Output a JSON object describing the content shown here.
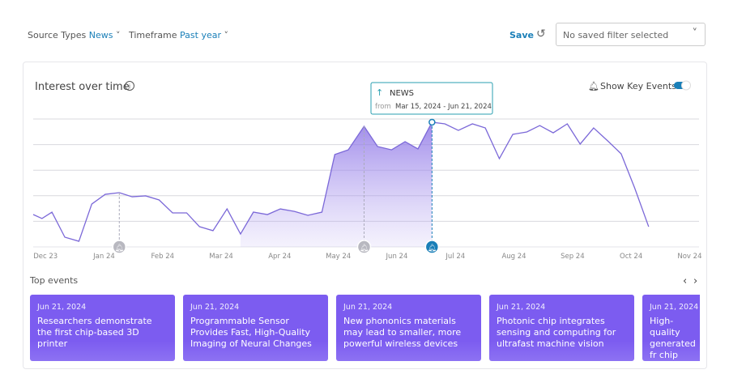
{
  "filters": {
    "source_label": "Source Types",
    "source_value": "News",
    "timeframe_label": "Timeframe",
    "timeframe_value": "Past year",
    "save": "Save",
    "saved_filter": "No saved filter selected"
  },
  "panel": {
    "title": "Interest over time",
    "key_events_toggle": "Show Key Events"
  },
  "tooltip": {
    "title": "NEWS",
    "from": "from",
    "range": "Mar 15, 2024 - Jun 21, 2024"
  },
  "chart_data": {
    "type": "line",
    "x": [
      -0.21,
      -0.06,
      0.11,
      0.33,
      0.57,
      0.79,
      1.02,
      1.26,
      1.48,
      1.71,
      1.94,
      2.17,
      2.41,
      2.63,
      2.86,
      3.1,
      3.33,
      3.55,
      3.79,
      4.01,
      4.25,
      4.48,
      4.72,
      4.94,
      5.17,
      5.44,
      5.67,
      5.91,
      6.14,
      6.36,
      6.6,
      6.82,
      7.05,
      7.29,
      7.51,
      7.75,
      7.98,
      8.22,
      8.44,
      8.67,
      8.91,
      9.13,
      9.36,
      9.6,
      9.83,
      10.06,
      10.3
    ],
    "series": [
      {
        "name": "News",
        "color": "#7b68d8",
        "values": [
          25.3,
          22.2,
          27.2,
          7.6,
          4.4,
          33.5,
          41.1,
          42.4,
          39.2,
          39.9,
          36.7,
          26.6,
          26.6,
          15.8,
          12.7,
          29.7,
          10.1,
          27.2,
          25.3,
          29.7,
          27.8,
          24.7,
          27.2,
          72.2,
          75.9,
          94.3,
          78.5,
          75.9,
          82.3,
          76.6,
          97.5,
          96.2,
          91.1,
          96.2,
          93.0,
          69.0,
          88.0,
          89.9,
          94.9,
          89.2,
          96.2,
          80.4,
          93.0,
          82.9,
          72.8,
          46.2,
          15.8
        ]
      }
    ],
    "xlim": [
      -0.21,
      11.16
    ],
    "xticks": [
      {
        "value": 0,
        "label": "Dec 23"
      },
      {
        "value": 1,
        "label": "Jan 24"
      },
      {
        "value": 2,
        "label": "Feb 24"
      },
      {
        "value": 3,
        "label": "Mar 24"
      },
      {
        "value": 4,
        "label": "Apr 24"
      },
      {
        "value": 5,
        "label": "May 24"
      },
      {
        "value": 6,
        "label": "Jun 24"
      },
      {
        "value": 7,
        "label": "Jul 24"
      },
      {
        "value": 8,
        "label": "Aug 24"
      },
      {
        "value": 9,
        "label": "Sep 24"
      },
      {
        "value": 10,
        "label": "Oct 24"
      },
      {
        "value": 11,
        "label": "Nov 24"
      }
    ],
    "ylim": [
      0,
      100
    ],
    "yticks": [
      20,
      40,
      60,
      80,
      100
    ],
    "grid": true,
    "shaded_xlim": [
      3.33,
      6.6
    ],
    "key_events_x": [
      1.26,
      5.44,
      6.6
    ]
  },
  "events": {
    "title": "Top events",
    "cards": [
      {
        "date": "Jun 21, 2024",
        "text": "Researchers demonstrate the first chip-based 3D printer"
      },
      {
        "date": "Jun 21, 2024",
        "text": "Programmable Sensor Provides Fast, High-Quality Imaging of Neural Changes"
      },
      {
        "date": "Jun 21, 2024",
        "text": "New phononics materials may lead to smaller, more powerful wireless devices"
      },
      {
        "date": "Jun 21, 2024",
        "text": "Photonic chip integrates sensing and computing for ultrafast machine vision"
      },
      {
        "date": "Jun 21, 2024",
        "text": "High-quality generated fr chip"
      }
    ]
  }
}
